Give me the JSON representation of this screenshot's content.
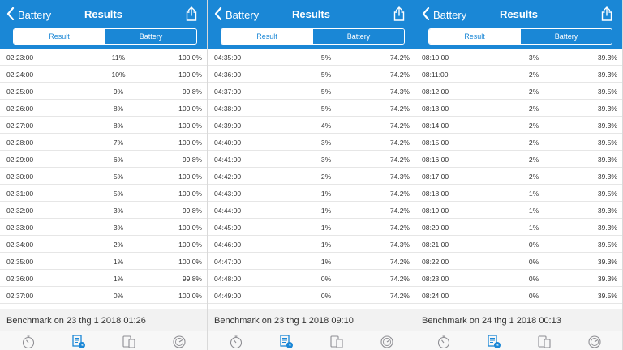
{
  "colors": {
    "accent": "#1a87d6",
    "inactive_icon": "#8e8e93"
  },
  "panels": [
    {
      "back_label": "Battery",
      "title": "Results",
      "segments": [
        "Result",
        "Battery"
      ],
      "rows": [
        [
          "02:23:00",
          "11%",
          "100.0%"
        ],
        [
          "02:24:00",
          "10%",
          "100.0%"
        ],
        [
          "02:25:00",
          "9%",
          "99.8%"
        ],
        [
          "02:26:00",
          "8%",
          "100.0%"
        ],
        [
          "02:27:00",
          "8%",
          "100.0%"
        ],
        [
          "02:28:00",
          "7%",
          "100.0%"
        ],
        [
          "02:29:00",
          "6%",
          "99.8%"
        ],
        [
          "02:30:00",
          "5%",
          "100.0%"
        ],
        [
          "02:31:00",
          "5%",
          "100.0%"
        ],
        [
          "02:32:00",
          "3%",
          "99.8%"
        ],
        [
          "02:33:00",
          "3%",
          "100.0%"
        ],
        [
          "02:34:00",
          "2%",
          "100.0%"
        ],
        [
          "02:35:00",
          "1%",
          "100.0%"
        ],
        [
          "02:36:00",
          "1%",
          "99.8%"
        ],
        [
          "02:37:00",
          "0%",
          "100.0%"
        ],
        [
          "02:38:00",
          "0%",
          "100.0%"
        ]
      ],
      "benchmark": "Benchmark on 23 thg 1 2018 01:26"
    },
    {
      "back_label": "Battery",
      "title": "Results",
      "segments": [
        "Result",
        "Battery"
      ],
      "rows": [
        [
          "04:35:00",
          "5%",
          "74.2%"
        ],
        [
          "04:36:00",
          "5%",
          "74.2%"
        ],
        [
          "04:37:00",
          "5%",
          "74.3%"
        ],
        [
          "04:38:00",
          "5%",
          "74.2%"
        ],
        [
          "04:39:00",
          "4%",
          "74.2%"
        ],
        [
          "04:40:00",
          "3%",
          "74.2%"
        ],
        [
          "04:41:00",
          "3%",
          "74.2%"
        ],
        [
          "04:42:00",
          "2%",
          "74.3%"
        ],
        [
          "04:43:00",
          "1%",
          "74.2%"
        ],
        [
          "04:44:00",
          "1%",
          "74.2%"
        ],
        [
          "04:45:00",
          "1%",
          "74.2%"
        ],
        [
          "04:46:00",
          "1%",
          "74.3%"
        ],
        [
          "04:47:00",
          "1%",
          "74.2%"
        ],
        [
          "04:48:00",
          "0%",
          "74.2%"
        ],
        [
          "04:49:00",
          "0%",
          "74.2%"
        ],
        [
          "04:50:00",
          "0%",
          "74.2%"
        ]
      ],
      "benchmark": "Benchmark on 23 thg 1 2018 09:10"
    },
    {
      "back_label": "Battery",
      "title": "Results",
      "segments": [
        "Result",
        "Battery"
      ],
      "rows": [
        [
          "08:10:00",
          "3%",
          "39.3%"
        ],
        [
          "08:11:00",
          "2%",
          "39.3%"
        ],
        [
          "08:12:00",
          "2%",
          "39.5%"
        ],
        [
          "08:13:00",
          "2%",
          "39.3%"
        ],
        [
          "08:14:00",
          "2%",
          "39.3%"
        ],
        [
          "08:15:00",
          "2%",
          "39.5%"
        ],
        [
          "08:16:00",
          "2%",
          "39.3%"
        ],
        [
          "08:17:00",
          "2%",
          "39.3%"
        ],
        [
          "08:18:00",
          "1%",
          "39.5%"
        ],
        [
          "08:19:00",
          "1%",
          "39.3%"
        ],
        [
          "08:20:00",
          "1%",
          "39.3%"
        ],
        [
          "08:21:00",
          "0%",
          "39.5%"
        ],
        [
          "08:22:00",
          "0%",
          "39.3%"
        ],
        [
          "08:23:00",
          "0%",
          "39.3%"
        ],
        [
          "08:24:00",
          "0%",
          "39.5%"
        ],
        [
          "08:25:00",
          "0%",
          "39.3%"
        ]
      ],
      "benchmark": "Benchmark on 24 thg 1 2018 00:13"
    }
  ],
  "tabbar": {
    "icons": [
      "stopwatch-icon",
      "results-doc-icon",
      "devices-icon",
      "speedometer-icon"
    ],
    "active_index": 1
  }
}
